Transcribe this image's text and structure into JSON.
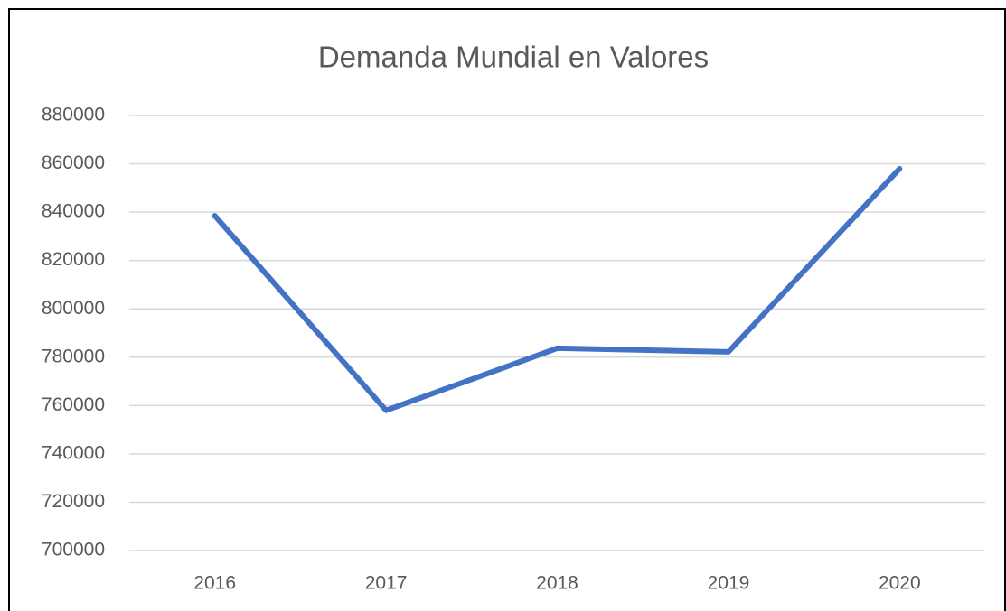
{
  "chart_data": {
    "type": "line",
    "title": "Demanda Mundial en Valores",
    "categories": [
      "2016",
      "2017",
      "2018",
      "2019",
      "2020"
    ],
    "values": [
      838500,
      758000,
      783700,
      782200,
      858000
    ],
    "color": "#4472c4",
    "ylim": [
      700000,
      880000
    ],
    "yticks": [
      700000,
      720000,
      740000,
      760000,
      780000,
      800000,
      820000,
      840000,
      860000,
      880000
    ],
    "grid": true
  }
}
